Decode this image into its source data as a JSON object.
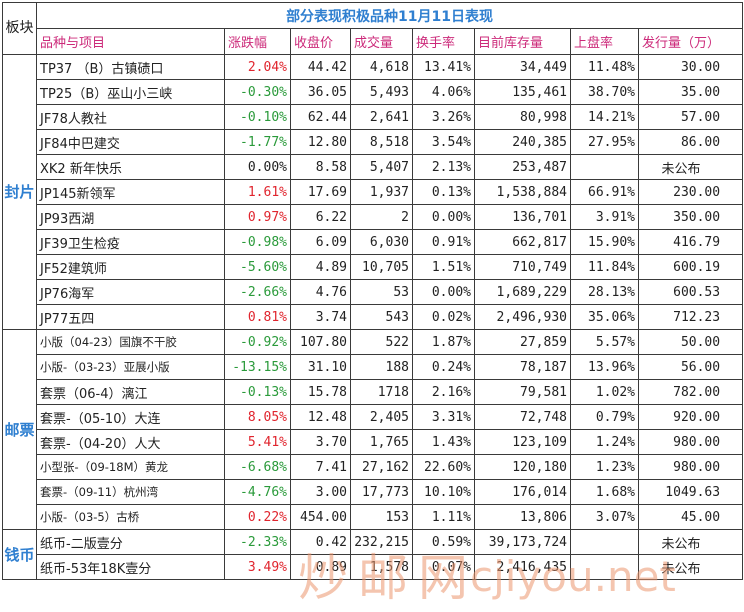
{
  "title": "部分表现积极品种11月11日表现",
  "corner_label": "板块",
  "headers": [
    "品种与项目",
    "涨跌幅",
    "收盘价",
    "成交量",
    "换手率",
    "目前库存量",
    "上盘率",
    "发行量（万）"
  ],
  "colors": {
    "up": "#e0252e",
    "down": "#2a9a3a",
    "header": "#cc2a7a",
    "title": "#2f7fd0"
  },
  "groups": [
    {
      "label": "封片",
      "rows": [
        {
          "name": "TP37 （B）古镇碛口",
          "change": "2.04%",
          "dir": "up",
          "close": "44.42",
          "volume": "4,618",
          "turnover": "13.41%",
          "stock": "34,449",
          "rate": "11.48%",
          "issue": "30.00"
        },
        {
          "name": "TP25（B）巫山小三峡",
          "change": "-0.30%",
          "dir": "down",
          "close": "36.05",
          "volume": "5,493",
          "turnover": "4.06%",
          "stock": "135,461",
          "rate": "38.70%",
          "issue": "35.00"
        },
        {
          "name": "JF78人教社",
          "change": "-0.10%",
          "dir": "down",
          "close": "62.44",
          "volume": "2,641",
          "turnover": "3.26%",
          "stock": "80,998",
          "rate": "14.21%",
          "issue": "57.00"
        },
        {
          "name": "JF84中巴建交",
          "change": "-1.77%",
          "dir": "down",
          "close": "12.80",
          "volume": "8,518",
          "turnover": "3.54%",
          "stock": "240,385",
          "rate": "27.95%",
          "issue": "86.00"
        },
        {
          "name": "XK2 新年快乐",
          "change": "0.00%",
          "dir": "flat",
          "close": "8.58",
          "volume": "5,407",
          "turnover": "2.13%",
          "stock": "253,487",
          "rate": "",
          "issue": "未公布"
        },
        {
          "name": "JP145新领军",
          "change": "1.61%",
          "dir": "up",
          "close": "17.69",
          "volume": "1,937",
          "turnover": "0.13%",
          "stock": "1,538,884",
          "rate": "66.91%",
          "issue": "230.00"
        },
        {
          "name": "JP93西湖",
          "change": "0.97%",
          "dir": "up",
          "close": "6.22",
          "volume": "2",
          "turnover": "0.00%",
          "stock": "136,701",
          "rate": "3.91%",
          "issue": "350.00"
        },
        {
          "name": "JF39卫生检疫",
          "change": "-0.98%",
          "dir": "down",
          "close": "6.09",
          "volume": "6,030",
          "turnover": "0.91%",
          "stock": "662,817",
          "rate": "15.90%",
          "issue": "416.79"
        },
        {
          "name": "JF52建筑师",
          "change": "-5.60%",
          "dir": "down",
          "close": "4.89",
          "volume": "10,705",
          "turnover": "1.51%",
          "stock": "710,749",
          "rate": "11.84%",
          "issue": "600.19"
        },
        {
          "name": "JP76海军",
          "change": "-2.66%",
          "dir": "down",
          "close": "4.76",
          "volume": "53",
          "turnover": "0.00%",
          "stock": "1,689,229",
          "rate": "28.13%",
          "issue": "600.53"
        },
        {
          "name": "JP77五四",
          "change": "0.81%",
          "dir": "up",
          "close": "3.74",
          "volume": "543",
          "turnover": "0.02%",
          "stock": "2,496,930",
          "rate": "35.06%",
          "issue": "712.23"
        }
      ]
    },
    {
      "label": "邮票",
      "rows": [
        {
          "name": "小版（04-23）国旗不干胶",
          "small": true,
          "change": "-0.92%",
          "dir": "down",
          "close": "107.80",
          "volume": "522",
          "turnover": "1.87%",
          "stock": "27,859",
          "rate": "5.57%",
          "issue": "50.00"
        },
        {
          "name": "小版-（03-23）亚展小版",
          "small": true,
          "change": "-13.15%",
          "dir": "down",
          "close": "31.10",
          "volume": "188",
          "turnover": "0.24%",
          "stock": "78,187",
          "rate": "13.96%",
          "issue": "56.00"
        },
        {
          "name": "套票（06-4）漓江",
          "change": "-0.13%",
          "dir": "down",
          "close": "15.78",
          "volume": "1718",
          "turnover": "2.16%",
          "stock": "79,581",
          "rate": "1.02%",
          "issue": "782.00"
        },
        {
          "name": "套票-（05-10）大连",
          "change": "8.05%",
          "dir": "up",
          "close": "12.48",
          "volume": "2,405",
          "turnover": "3.31%",
          "stock": "72,748",
          "rate": "0.79%",
          "issue": "920.00"
        },
        {
          "name": "套票-（04-20）人大",
          "change": "5.41%",
          "dir": "up",
          "close": "3.70",
          "volume": "1,765",
          "turnover": "1.43%",
          "stock": "123,109",
          "rate": "1.24%",
          "issue": "980.00"
        },
        {
          "name": "小型张-（09-18M）黄龙",
          "small": true,
          "change": "-6.68%",
          "dir": "down",
          "close": "7.41",
          "volume": "27,162",
          "turnover": "22.60%",
          "stock": "120,180",
          "rate": "1.23%",
          "issue": "980.00"
        },
        {
          "name": "套票-（09-11）杭州湾",
          "small": true,
          "change": "-4.76%",
          "dir": "down",
          "close": "3.00",
          "volume": "17,773",
          "turnover": "10.10%",
          "stock": "176,014",
          "rate": "1.68%",
          "issue": "1049.63"
        },
        {
          "name": "小版-（03-5）古桥",
          "small": true,
          "change": "0.22%",
          "dir": "up",
          "close": "454.00",
          "volume": "153",
          "turnover": "1.11%",
          "stock": "13,806",
          "rate": "3.07%",
          "issue": "45.00"
        }
      ]
    },
    {
      "label": "钱币",
      "rows": [
        {
          "name": "纸币-二版壹分",
          "change": "-2.33%",
          "dir": "down",
          "close": "0.42",
          "volume": "232,215",
          "turnover": "0.59%",
          "stock": "39,173,724",
          "rate": "",
          "issue": "未公布"
        },
        {
          "name": "纸币-53年18K壹分",
          "change": "3.49%",
          "dir": "up",
          "close": "0.89",
          "volume": "1,578",
          "turnover": "0.07%",
          "stock": "2,416,435",
          "rate": "",
          "issue": "未公布"
        }
      ]
    }
  ],
  "watermark": {
    "cn": "炒邮网",
    "en": "cjiyou.net"
  }
}
